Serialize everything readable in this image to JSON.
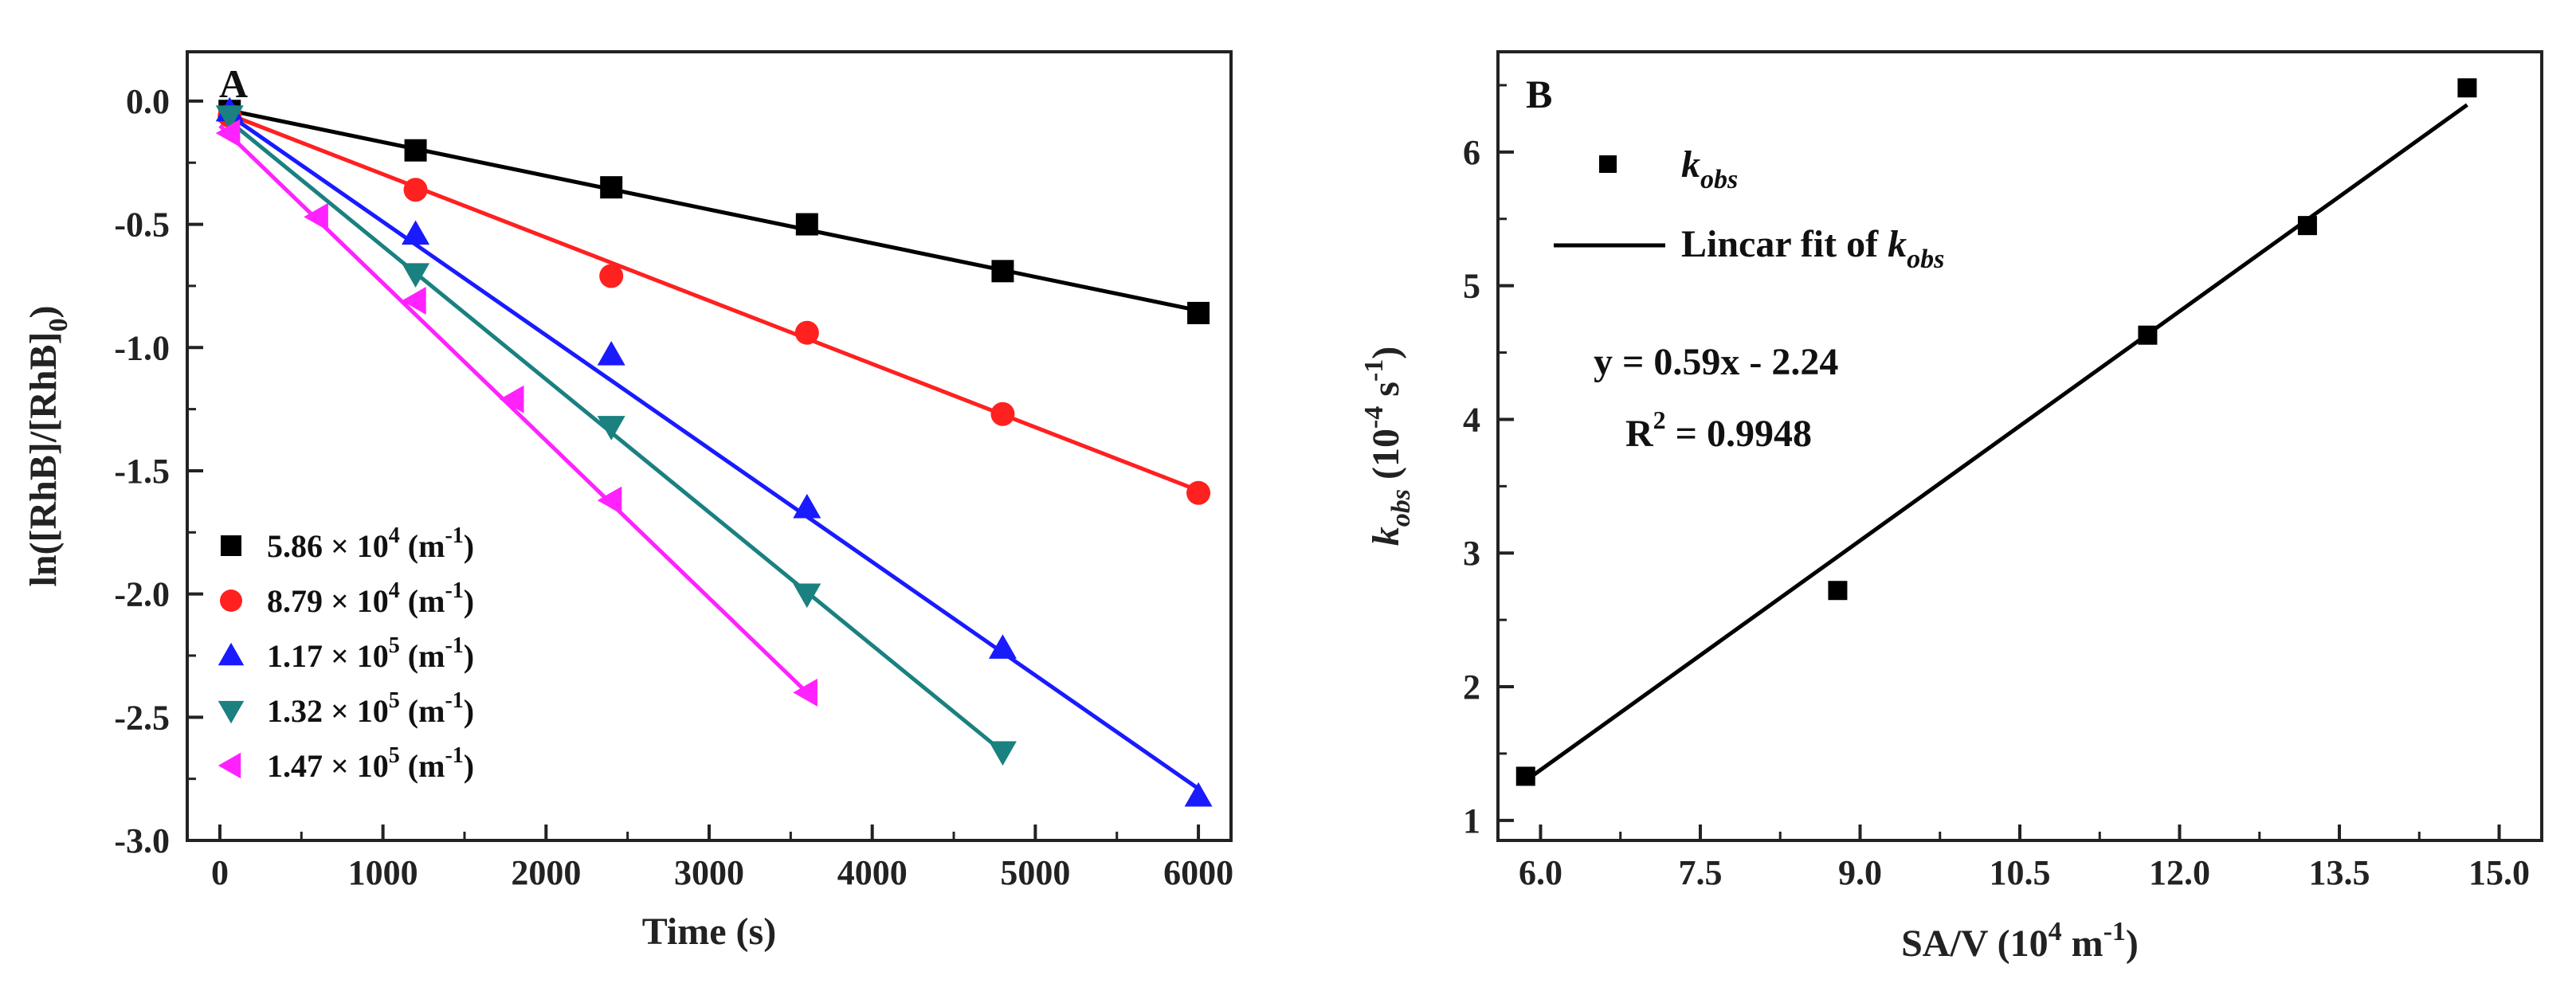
{
  "chart_data": [
    {
      "panel": "A",
      "type": "scatter",
      "xlabel": "Time (s)",
      "ylabel": "ln([RhB]/[RhB]0)",
      "ylabel_main": "ln([RhB]/[RhB]",
      "ylabel_sub": "0",
      "ylabel_close": ")",
      "xlim": [
        -200,
        6200
      ],
      "ylim": [
        -3.0,
        0.2
      ],
      "xticks": [
        0,
        1000,
        2000,
        3000,
        4000,
        5000,
        6000
      ],
      "xtick_labels": [
        "0",
        "1000",
        "2000",
        "3000",
        "4000",
        "5000",
        "6000"
      ],
      "yticks": [
        0.0,
        -0.5,
        -1.0,
        -1.5,
        -2.0,
        -2.5,
        -3.0
      ],
      "ytick_labels": [
        "0.0",
        "-0.5",
        "-1.0",
        "-1.5",
        "-2.0",
        "-2.5",
        "-3.0"
      ],
      "legend_position": "bottom-left",
      "series": [
        {
          "name": "5.86 × 10^4 (m^-1)",
          "label_main": "5.86 × 10",
          "label_exp": "4",
          "label_unit": " (m",
          "label_unit_exp": "-1",
          "label_close": ")",
          "color": "#000000",
          "marker": "square",
          "x": [
            60,
            1200,
            2400,
            3600,
            4800,
            6000
          ],
          "y": [
            -0.04,
            -0.2,
            -0.35,
            -0.5,
            -0.69,
            -0.86
          ],
          "fit": [
            [
              0,
              -0.03
            ],
            [
              6000,
              -0.85
            ]
          ]
        },
        {
          "name": "8.79 × 10^4 (m^-1)",
          "label_main": "8.79 × 10",
          "label_exp": "4",
          "label_unit": " (m",
          "label_unit_exp": "-1",
          "label_close": ")",
          "color": "#ff2020",
          "marker": "circle",
          "x": [
            60,
            1200,
            2400,
            3600,
            4800,
            6000
          ],
          "y": [
            -0.06,
            -0.36,
            -0.71,
            -0.94,
            -1.27,
            -1.59
          ],
          "fit": [
            [
              0,
              -0.04
            ],
            [
              6000,
              -1.58
            ]
          ]
        },
        {
          "name": "1.17 × 10^5 (m^-1)",
          "label_main": "1.17 × 10",
          "label_exp": "5",
          "label_unit": " (m",
          "label_unit_exp": "-1",
          "label_close": ")",
          "color": "#1a1aff",
          "marker": "triangle-up",
          "x": [
            60,
            1200,
            2400,
            3600,
            4800,
            6000
          ],
          "y": [
            -0.04,
            -0.54,
            -1.03,
            -1.65,
            -2.22,
            -2.82
          ],
          "fit": [
            [
              0,
              -0.03
            ],
            [
              6000,
              -2.79
            ]
          ]
        },
        {
          "name": "1.32 × 10^5 (m^-1)",
          "label_main": "1.32 × 10",
          "label_exp": "5",
          "label_unit": " (m",
          "label_unit_exp": "-1",
          "label_close": ")",
          "color": "#1a8080",
          "marker": "triangle-down",
          "x": [
            60,
            1200,
            2400,
            3600,
            4800
          ],
          "y": [
            -0.06,
            -0.7,
            -1.32,
            -2.0,
            -2.64
          ],
          "fit": [
            [
              0,
              -0.05
            ],
            [
              4800,
              -2.64
            ]
          ]
        },
        {
          "name": "1.47 × 10^5 (m^-1)",
          "label_main": "1.47 × 10",
          "label_exp": "5",
          "label_unit": " (m",
          "label_unit_exp": "-1",
          "label_close": ")",
          "color": "#ff22ff",
          "marker": "triangle-left",
          "x": [
            60,
            600,
            1200,
            1800,
            2400,
            3600
          ],
          "y": [
            -0.13,
            -0.47,
            -0.81,
            -1.21,
            -1.62,
            -2.4
          ],
          "fit": [
            [
              0,
              -0.1
            ],
            [
              3600,
              -2.4
            ]
          ]
        }
      ]
    },
    {
      "panel": "B",
      "type": "scatter",
      "xlabel": "SA/V (10^4 m^-1)",
      "xlabel_main": "SA/V (10",
      "xlabel_exp": "4",
      "xlabel_unit": " m",
      "xlabel_unit_exp": "-1",
      "xlabel_close": ")",
      "ylabel": "k_obs (10^-4 s^-1)",
      "ylabel_k": "k",
      "ylabel_k_sub": "obs",
      "ylabel_unit_open": " (10",
      "ylabel_unit_exp": "-4",
      "ylabel_unit_s": " s",
      "ylabel_unit_s_exp": "-1",
      "ylabel_close": ")",
      "xlim": [
        5.6,
        15.4
      ],
      "ylim": [
        0.85,
        6.75
      ],
      "xticks": [
        6.0,
        7.5,
        9.0,
        10.5,
        12.0,
        13.5,
        15.0
      ],
      "xtick_labels": [
        "6.0",
        "7.5",
        "9.0",
        "10.5",
        "12.0",
        "13.5",
        "15.0"
      ],
      "yticks": [
        1,
        2,
        3,
        4,
        5,
        6
      ],
      "ytick_labels": [
        "1",
        "2",
        "3",
        "4",
        "5",
        "6"
      ],
      "series": [
        {
          "name": "k_obs",
          "color": "#000000",
          "marker": "square",
          "x": [
            5.86,
            8.79,
            11.7,
            13.2,
            14.7
          ],
          "y": [
            1.33,
            2.72,
            4.63,
            5.45,
            6.48
          ]
        }
      ],
      "fit": {
        "name": "Lincar fit of k_obs",
        "slope": 0.59,
        "intercept": -2.24,
        "x_range": [
          5.86,
          14.7
        ]
      },
      "legend": {
        "marker_label_k": "k",
        "marker_label_sub": "obs",
        "fit_label_main": "Lincar fit of ",
        "fit_label_k": "k",
        "fit_label_sub": "obs"
      },
      "equation": "y = 0.59x - 2.24",
      "r2_main": "R",
      "r2_exp": "2",
      "r2_value": " = 0.9948"
    }
  ]
}
